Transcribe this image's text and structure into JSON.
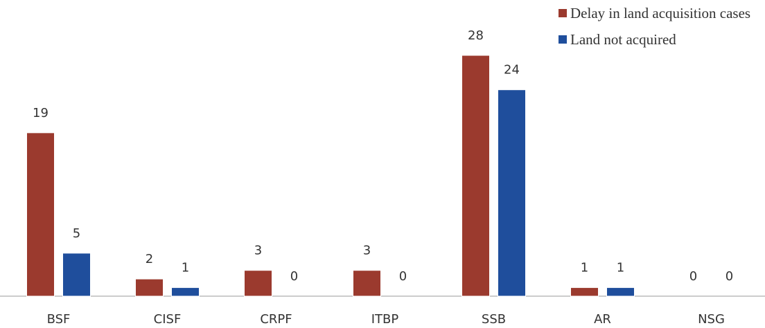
{
  "chart_data": {
    "type": "bar",
    "categories": [
      "BSF",
      "CISF",
      "CRPF",
      "ITBP",
      "SSB",
      "AR",
      "NSG"
    ],
    "series": [
      {
        "name": "Delay in land acquisition cases",
        "color": "#9b3a2e",
        "values": [
          19,
          2,
          3,
          3,
          28,
          1,
          0
        ]
      },
      {
        "name": "Land not acquired",
        "color": "#1f4e9c",
        "values": [
          5,
          1,
          0,
          0,
          24,
          1,
          0
        ]
      }
    ]
  }
}
